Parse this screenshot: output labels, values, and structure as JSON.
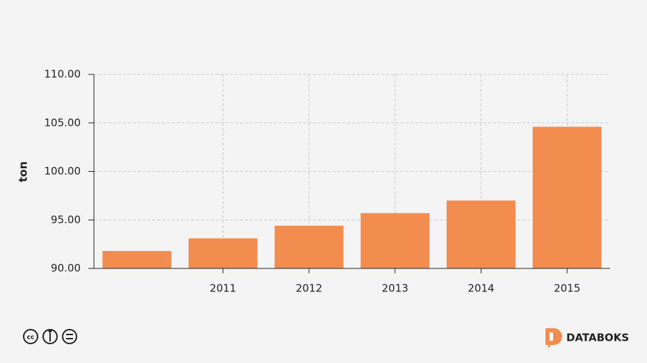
{
  "chart_data": {
    "type": "bar",
    "y_label": "ton",
    "categories": [
      null,
      "2011",
      "2012",
      "2013",
      "2014",
      "2015"
    ],
    "values": [
      91.8,
      93.1,
      94.4,
      95.7,
      97.0,
      104.6
    ],
    "color": "#f28c4f",
    "ylim": [
      90,
      110
    ],
    "yticks": [
      {
        "value": 90,
        "label": "90.00"
      },
      {
        "value": 95,
        "label": "95.00"
      },
      {
        "value": 100,
        "label": "100.00"
      },
      {
        "value": 105,
        "label": "105.00"
      },
      {
        "value": 110,
        "label": "110.00"
      }
    ],
    "grid": true
  },
  "footer": {
    "brand": "DATABOKS"
  }
}
